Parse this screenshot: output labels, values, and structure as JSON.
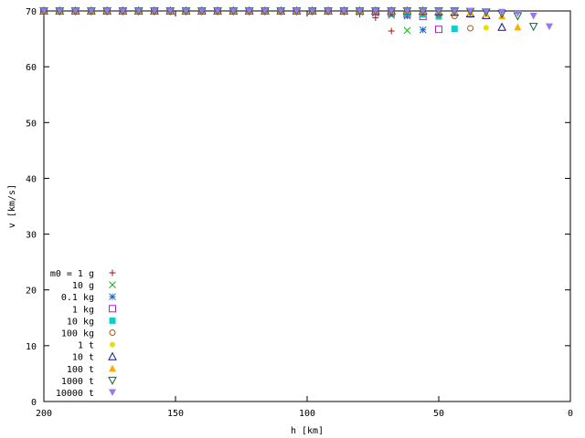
{
  "chart_data": {
    "type": "scatter",
    "title": "",
    "xlabel": "h [km]",
    "ylabel": "v [km/s]",
    "xlim": [
      200,
      0
    ],
    "ylim": [
      0,
      70
    ],
    "x_reversed": true,
    "xticks": [
      200,
      150,
      100,
      50,
      0
    ],
    "yticks": [
      0,
      10,
      20,
      30,
      40,
      50,
      60,
      70
    ],
    "grid": false,
    "legend_position": "bottom-left",
    "series": [
      {
        "name": "m0 = 1 g",
        "marker": "plus",
        "color": "#aa1111",
        "x": [
          200,
          194,
          188,
          182,
          176,
          170,
          164,
          158,
          152,
          146,
          140,
          134,
          128,
          122,
          116,
          110,
          104,
          98,
          92,
          86,
          80,
          74,
          68
        ],
        "y": [
          70,
          70,
          70,
          70,
          70,
          70,
          70,
          70,
          70,
          70,
          70,
          70,
          70,
          70,
          70,
          70,
          70,
          70,
          69.9,
          69.8,
          69.4,
          68.8,
          66.4
        ]
      },
      {
        "name": "10 g",
        "marker": "cross",
        "color": "#22aa22",
        "x": [
          200,
          194,
          188,
          182,
          176,
          170,
          164,
          158,
          152,
          146,
          140,
          134,
          128,
          122,
          116,
          110,
          104,
          98,
          92,
          86,
          80,
          74,
          68,
          62
        ],
        "y": [
          70,
          70,
          70,
          70,
          70,
          70,
          70,
          70,
          70,
          70,
          70,
          70,
          70,
          70,
          70,
          70,
          70,
          70,
          70,
          69.9,
          69.8,
          69.6,
          69.2,
          66.5
        ]
      },
      {
        "name": "0.1 kg",
        "marker": "star",
        "color": "#2266bb",
        "x": [
          200,
          194,
          188,
          182,
          176,
          170,
          164,
          158,
          152,
          146,
          140,
          134,
          128,
          122,
          116,
          110,
          104,
          98,
          92,
          86,
          80,
          74,
          68,
          62,
          56
        ],
        "y": [
          70,
          70,
          70,
          70,
          70,
          70,
          70,
          70,
          70,
          70,
          70,
          70,
          70,
          70,
          70,
          70,
          70,
          70,
          70,
          70,
          69.9,
          69.7,
          69.5,
          69.1,
          66.6
        ]
      },
      {
        "name": "1 kg",
        "marker": "open-square",
        "color": "#aa22cc",
        "x": [
          200,
          194,
          188,
          182,
          176,
          170,
          164,
          158,
          152,
          146,
          140,
          134,
          128,
          122,
          116,
          110,
          104,
          98,
          92,
          86,
          80,
          74,
          68,
          62,
          56,
          50
        ],
        "y": [
          70,
          70,
          70,
          70,
          70,
          70,
          70,
          70,
          70,
          70,
          70,
          70,
          70,
          70,
          70,
          70,
          70,
          70,
          70,
          70,
          70,
          69.9,
          69.7,
          69.4,
          69,
          66.7
        ]
      },
      {
        "name": "10 kg",
        "marker": "filled-square",
        "color": "#11cccc",
        "x": [
          200,
          194,
          188,
          182,
          176,
          170,
          164,
          158,
          152,
          146,
          140,
          134,
          128,
          122,
          116,
          110,
          104,
          98,
          92,
          86,
          80,
          74,
          68,
          62,
          56,
          50,
          44
        ],
        "y": [
          70,
          70,
          70,
          70,
          70,
          70,
          70,
          70,
          70,
          70,
          70,
          70,
          70,
          70,
          70,
          70,
          70,
          70,
          70,
          70,
          70,
          70,
          69.9,
          69.7,
          69.4,
          69,
          66.8
        ]
      },
      {
        "name": "100 kg",
        "marker": "open-circle",
        "color": "#aa5511",
        "x": [
          200,
          194,
          188,
          182,
          176,
          170,
          164,
          158,
          152,
          146,
          140,
          134,
          128,
          122,
          116,
          110,
          104,
          98,
          92,
          86,
          80,
          74,
          68,
          62,
          56,
          50,
          44,
          38
        ],
        "y": [
          70,
          70,
          70,
          70,
          70,
          70,
          70,
          70,
          70,
          70,
          70,
          70,
          70,
          70,
          70,
          70,
          70,
          70,
          70,
          70,
          70,
          70,
          70,
          69.9,
          69.7,
          69.4,
          69.1,
          66.9
        ]
      },
      {
        "name": "1 t",
        "marker": "filled-circle",
        "color": "#eedd00",
        "x": [
          200,
          194,
          188,
          182,
          176,
          170,
          164,
          158,
          152,
          146,
          140,
          134,
          128,
          122,
          116,
          110,
          104,
          98,
          92,
          86,
          80,
          74,
          68,
          62,
          56,
          50,
          44,
          38,
          32
        ],
        "y": [
          70,
          70,
          70,
          70,
          70,
          70,
          70,
          70,
          70,
          70,
          70,
          70,
          70,
          70,
          70,
          70,
          70,
          70,
          70,
          70,
          70,
          70,
          70,
          70,
          69.9,
          69.8,
          69.5,
          69.2,
          67
        ]
      },
      {
        "name": "10 t",
        "marker": "open-triangle-up",
        "color": "#111188",
        "x": [
          200,
          194,
          188,
          182,
          176,
          170,
          164,
          158,
          152,
          146,
          140,
          134,
          128,
          122,
          116,
          110,
          104,
          98,
          92,
          86,
          80,
          74,
          68,
          62,
          56,
          50,
          44,
          38,
          32,
          26
        ],
        "y": [
          70,
          70,
          70,
          70,
          70,
          70,
          70,
          70,
          70,
          70,
          70,
          70,
          70,
          70,
          70,
          70,
          70,
          70,
          70,
          70,
          70,
          70,
          70,
          70,
          70,
          69.9,
          69.8,
          69.5,
          69.2,
          67.1
        ]
      },
      {
        "name": "100 t",
        "marker": "filled-triangle-up",
        "color": "#ffaa00",
        "x": [
          200,
          194,
          188,
          182,
          176,
          170,
          164,
          158,
          152,
          146,
          140,
          134,
          128,
          122,
          116,
          110,
          104,
          98,
          92,
          86,
          80,
          74,
          68,
          62,
          56,
          50,
          44,
          38,
          32,
          26,
          20
        ],
        "y": [
          70,
          70,
          70,
          70,
          70,
          70,
          70,
          70,
          70,
          70,
          70,
          70,
          70,
          70,
          70,
          70,
          70,
          70,
          70,
          70,
          70,
          70,
          70,
          70,
          70,
          70,
          69.9,
          69.8,
          69.5,
          69.1,
          67.1
        ]
      },
      {
        "name": "1000 t",
        "marker": "open-triangle-down",
        "color": "#116633",
        "x": [
          200,
          194,
          188,
          182,
          176,
          170,
          164,
          158,
          152,
          146,
          140,
          134,
          128,
          122,
          116,
          110,
          104,
          98,
          92,
          86,
          80,
          74,
          68,
          62,
          56,
          50,
          44,
          38,
          32,
          26,
          20,
          14
        ],
        "y": [
          70,
          70,
          70,
          70,
          70,
          70,
          70,
          70,
          70,
          70,
          70,
          70,
          70,
          70,
          70,
          70,
          70,
          70,
          70,
          70,
          70,
          70,
          70,
          70,
          70,
          70,
          70,
          69.9,
          69.8,
          69.5,
          69.1,
          67.2
        ]
      },
      {
        "name": "10000 t",
        "marker": "filled-triangle-down",
        "color": "#9977ee",
        "x": [
          200,
          194,
          188,
          182,
          176,
          170,
          164,
          158,
          152,
          146,
          140,
          134,
          128,
          122,
          116,
          110,
          104,
          98,
          92,
          86,
          80,
          74,
          68,
          62,
          56,
          50,
          44,
          38,
          32,
          26,
          20,
          14,
          8
        ],
        "y": [
          70,
          70,
          70,
          70,
          70,
          70,
          70,
          70,
          70,
          70,
          70,
          70,
          70,
          70,
          70,
          70,
          70,
          70,
          70,
          70,
          70,
          70,
          70,
          70,
          70,
          70,
          70,
          70,
          69.9,
          69.8,
          69.6,
          69.1,
          67.2
        ]
      }
    ]
  }
}
